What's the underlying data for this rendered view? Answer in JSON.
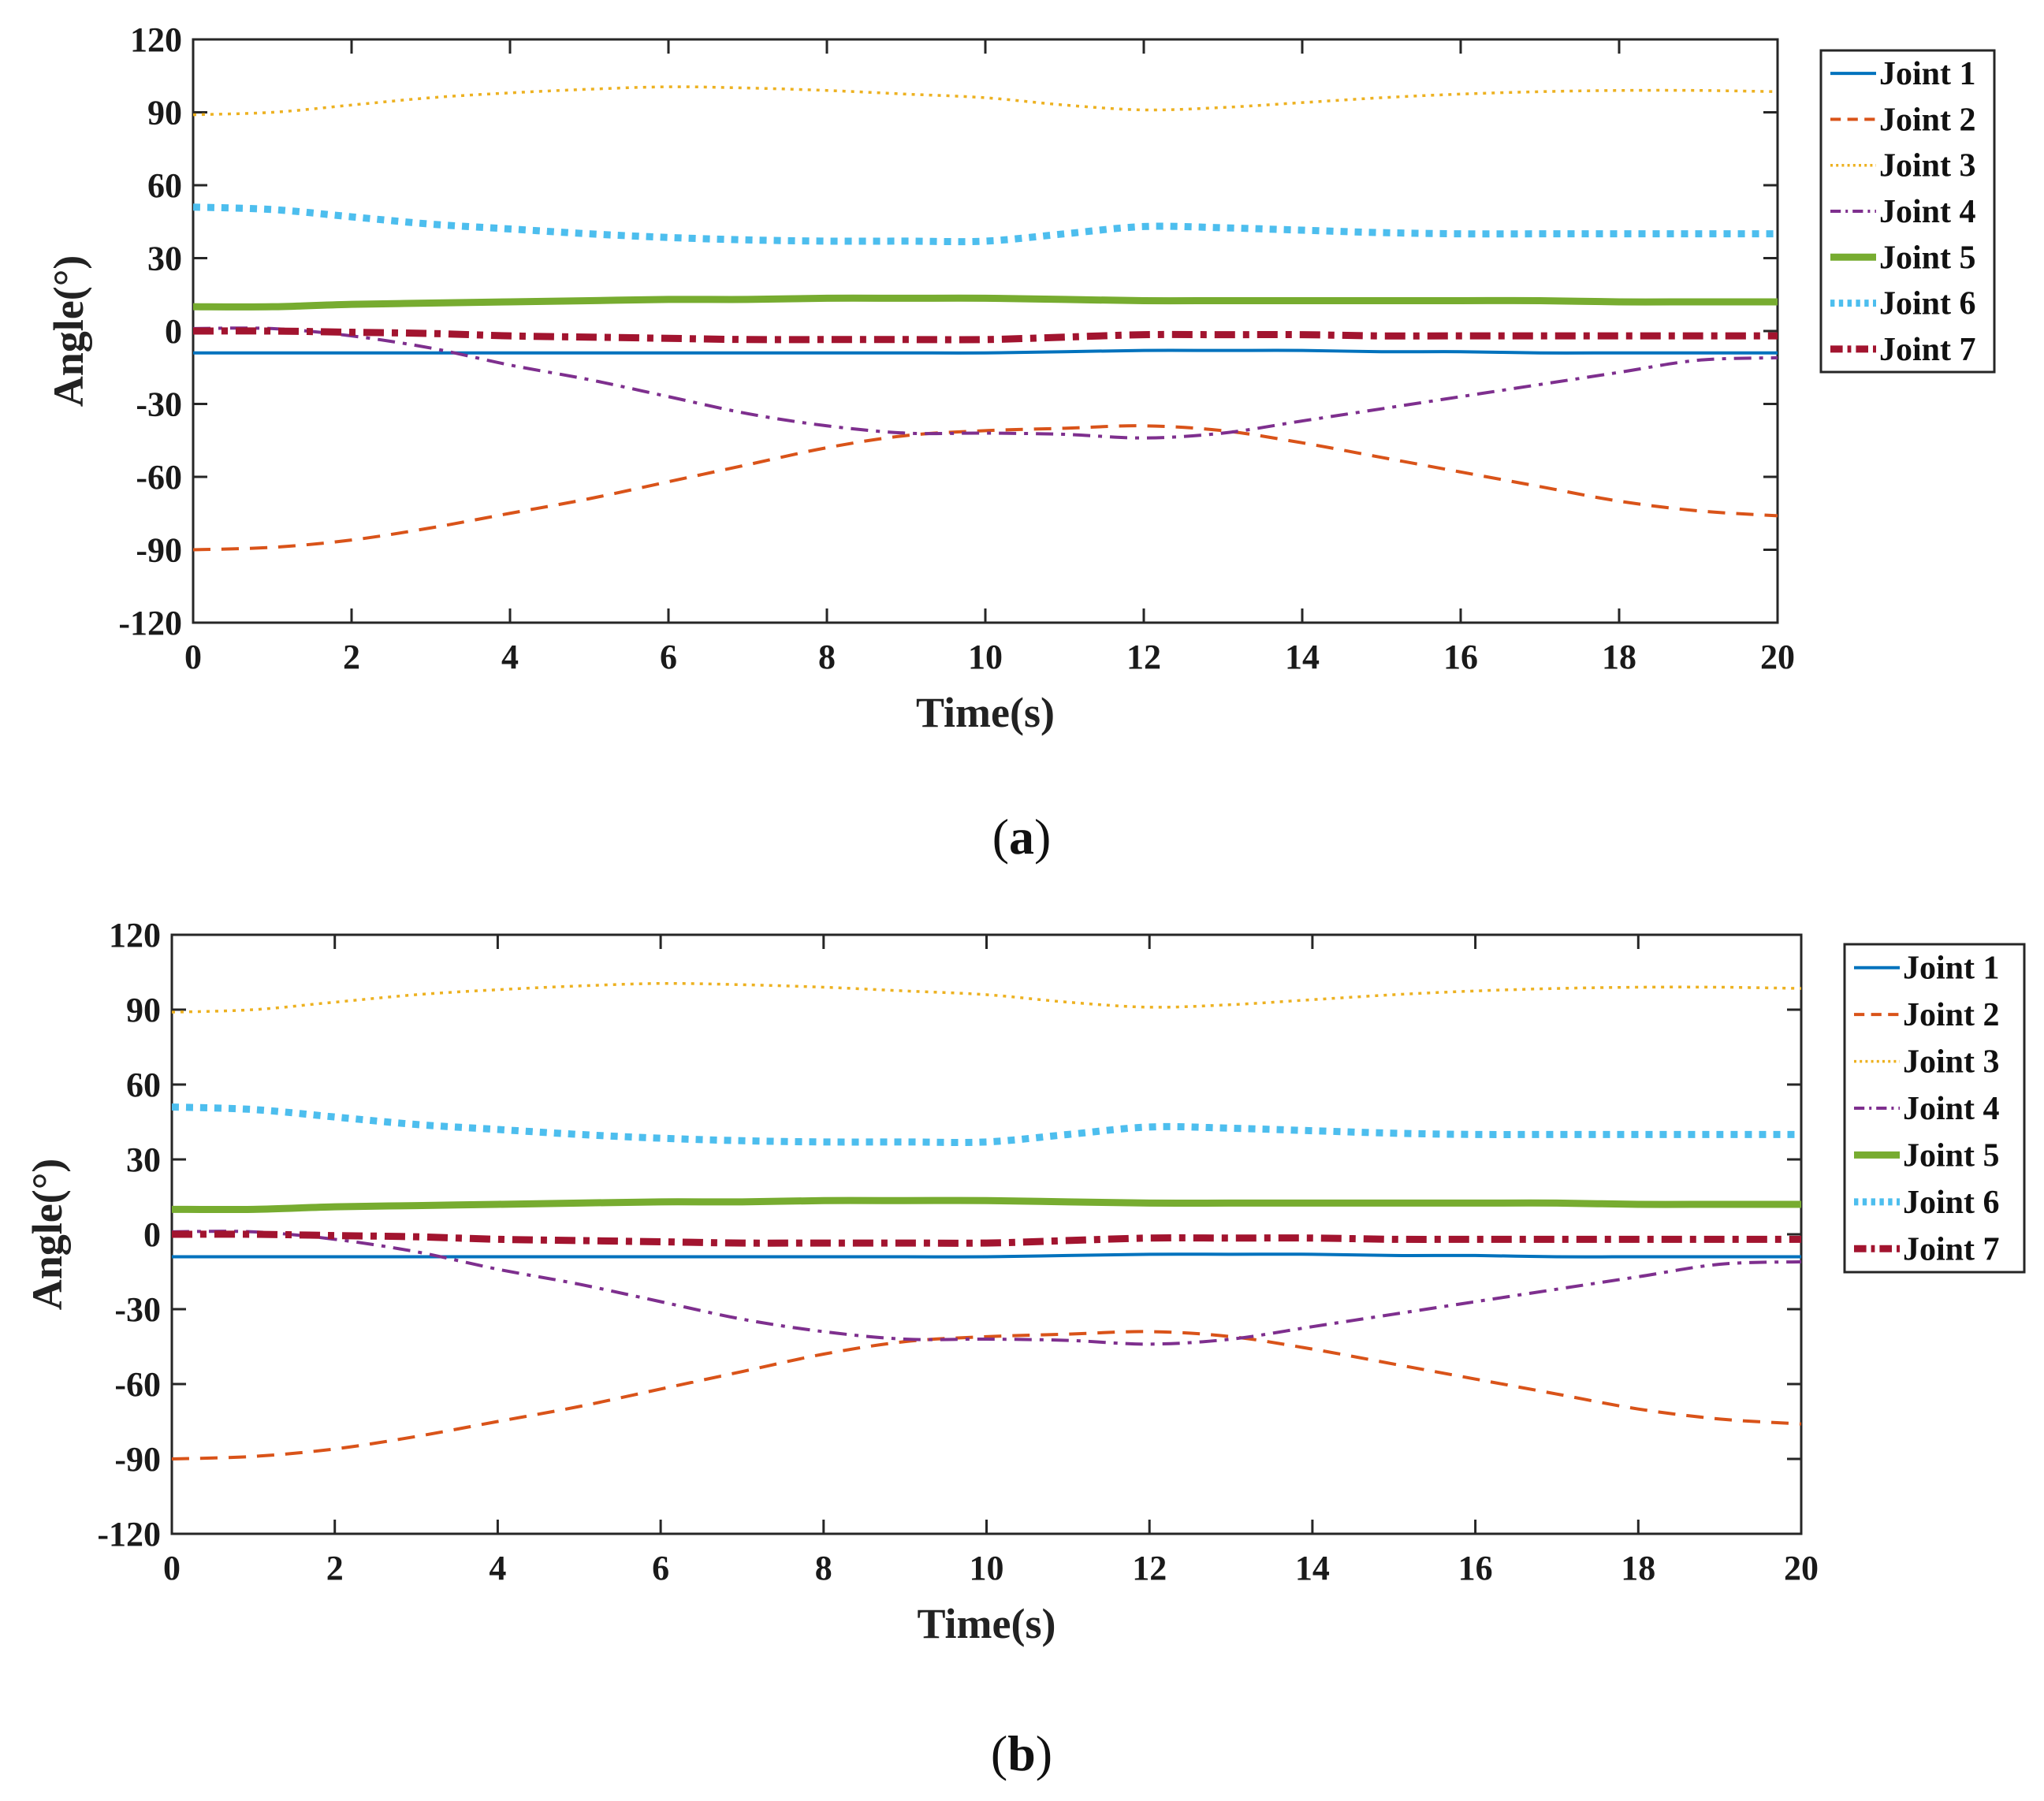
{
  "chart_data": [
    {
      "type": "line",
      "panel_label": "a",
      "title": "",
      "xlabel": "Time(s)",
      "ylabel": "Angle(°)",
      "xlim": [
        0,
        20
      ],
      "ylim": [
        -120,
        120
      ],
      "x_ticks": [
        "0",
        "2",
        "4",
        "6",
        "8",
        "10",
        "12",
        "14",
        "16",
        "18",
        "20"
      ],
      "y_ticks": [
        "120",
        "90",
        "60",
        "30",
        "0",
        "-30",
        "-60",
        "-90",
        "-120"
      ],
      "grid": false,
      "legend_position": "outside-right",
      "x": [
        0,
        1,
        2,
        3,
        4,
        5,
        6,
        7,
        8,
        9,
        10,
        11,
        12,
        13,
        14,
        15,
        16,
        17,
        18,
        19,
        20
      ],
      "series": [
        {
          "name": "Joint 1",
          "color": "#0072BD",
          "style": "solid",
          "values": [
            -9,
            -9,
            -9,
            -9,
            -9,
            -9,
            -9,
            -9,
            -9,
            -9,
            -9,
            -8.5,
            -8,
            -8,
            -8,
            -8.5,
            -8.5,
            -9,
            -9,
            -9,
            -9
          ]
        },
        {
          "name": "Joint 2",
          "color": "#D95319",
          "style": "dashed",
          "values": [
            -90,
            -89,
            -86,
            -81,
            -75,
            -69,
            -62,
            -55,
            -48,
            -43,
            -41,
            -40,
            -39,
            -41,
            -46,
            -52,
            -58,
            -64,
            -70,
            -74,
            -76
          ]
        },
        {
          "name": "Joint 3",
          "color": "#EDB120",
          "style": "dotted",
          "values": [
            89,
            90,
            93,
            96,
            98,
            99.5,
            100.5,
            100,
            99,
            97.5,
            96,
            93,
            91,
            92,
            94,
            96,
            97.5,
            98.5,
            99,
            99,
            98.5
          ]
        },
        {
          "name": "Joint 4",
          "color": "#7E2F8E",
          "style": "dashdot",
          "values": [
            1,
            1,
            -2,
            -7,
            -14,
            -20,
            -27,
            -34,
            -39,
            -42,
            -42,
            -42.5,
            -44,
            -42,
            -37,
            -32,
            -27,
            -22,
            -17,
            -12,
            -11
          ]
        },
        {
          "name": "Joint 5",
          "color": "#77AC30",
          "style": "solid-thick",
          "values": [
            10,
            10,
            11,
            11.5,
            12,
            12.5,
            13,
            13,
            13.5,
            13.5,
            13.5,
            13,
            12.5,
            12.5,
            12.5,
            12.5,
            12.5,
            12.5,
            12,
            12,
            12
          ]
        },
        {
          "name": "Joint 6",
          "color": "#4DBEEE",
          "style": "dotted-thick",
          "values": [
            51,
            50,
            47,
            44,
            42,
            40,
            38.5,
            37.5,
            37,
            37,
            37,
            40,
            43,
            42.5,
            41.5,
            40.5,
            40,
            40,
            40,
            40,
            40
          ]
        },
        {
          "name": "Joint 7",
          "color": "#A2142F",
          "style": "dashdot-thick",
          "values": [
            0,
            0,
            -0.5,
            -1,
            -2,
            -2.5,
            -3,
            -3.5,
            -3.5,
            -3.5,
            -3.5,
            -2.5,
            -1.5,
            -1.5,
            -1.5,
            -2,
            -2,
            -2,
            -2,
            -2,
            -2
          ]
        }
      ]
    },
    {
      "type": "line",
      "panel_label": "b",
      "title": "",
      "xlabel": "Time(s)",
      "ylabel": "Angle(°)",
      "xlim": [
        0,
        20
      ],
      "ylim": [
        -120,
        120
      ],
      "x_ticks": [
        "0",
        "2",
        "4",
        "6",
        "8",
        "10",
        "12",
        "14",
        "16",
        "18",
        "20"
      ],
      "y_ticks": [
        "120",
        "90",
        "60",
        "30",
        "0",
        "-30",
        "-60",
        "-90",
        "-120"
      ],
      "grid": false,
      "legend_position": "outside-right",
      "x": [
        0,
        1,
        2,
        3,
        4,
        5,
        6,
        7,
        8,
        9,
        10,
        11,
        12,
        13,
        14,
        15,
        16,
        17,
        18,
        19,
        20
      ],
      "series": [
        {
          "name": "Joint 1",
          "color": "#0072BD",
          "style": "solid",
          "values": [
            -9,
            -9,
            -9,
            -9,
            -9,
            -9,
            -9,
            -9,
            -9,
            -9,
            -9,
            -8.5,
            -8,
            -8,
            -8,
            -8.5,
            -8.5,
            -9,
            -9,
            -9,
            -9
          ]
        },
        {
          "name": "Joint 2",
          "color": "#D95319",
          "style": "dashed",
          "values": [
            -90,
            -89,
            -86,
            -81,
            -75,
            -69,
            -62,
            -55,
            -48,
            -43,
            -41,
            -40,
            -39,
            -41,
            -46,
            -52,
            -58,
            -64,
            -70,
            -74,
            -76
          ]
        },
        {
          "name": "Joint 3",
          "color": "#EDB120",
          "style": "dotted",
          "values": [
            89,
            90,
            93,
            96,
            98,
            99.5,
            100.5,
            100,
            99,
            97.5,
            96,
            93,
            91,
            92,
            94,
            96,
            97.5,
            98.5,
            99,
            99,
            98.5
          ]
        },
        {
          "name": "Joint 4",
          "color": "#7E2F8E",
          "style": "dashdot",
          "values": [
            1,
            1,
            -2,
            -7,
            -14,
            -20,
            -27,
            -34,
            -39,
            -42,
            -42,
            -42.5,
            -44,
            -42,
            -37,
            -32,
            -27,
            -22,
            -17,
            -12,
            -11
          ]
        },
        {
          "name": "Joint 5",
          "color": "#77AC30",
          "style": "solid-thick",
          "values": [
            10,
            10,
            11,
            11.5,
            12,
            12.5,
            13,
            13,
            13.5,
            13.5,
            13.5,
            13,
            12.5,
            12.5,
            12.5,
            12.5,
            12.5,
            12.5,
            12,
            12,
            12
          ]
        },
        {
          "name": "Joint 6",
          "color": "#4DBEEE",
          "style": "dotted-thick",
          "values": [
            51,
            50,
            47,
            44,
            42,
            40,
            38.5,
            37.5,
            37,
            37,
            37,
            40,
            43,
            42.5,
            41.5,
            40.5,
            40,
            40,
            40,
            40,
            40
          ]
        },
        {
          "name": "Joint 7",
          "color": "#A2142F",
          "style": "dashdot-thick",
          "values": [
            0,
            0,
            -0.5,
            -1,
            -2,
            -2.5,
            -3,
            -3.5,
            -3.5,
            -3.5,
            -3.5,
            -2.5,
            -1.5,
            -1.5,
            -1.5,
            -2,
            -2,
            -2,
            -2,
            -2,
            -2
          ]
        }
      ]
    }
  ]
}
